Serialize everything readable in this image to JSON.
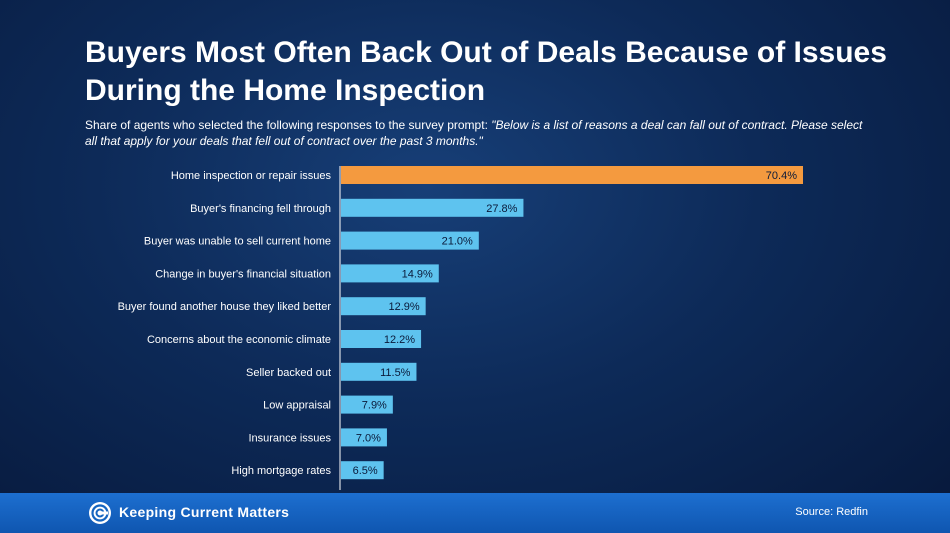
{
  "title": "Buyers Most Often Back Out of Deals Because of Issues During the Home Inspection",
  "subtitle_plain": "Share of agents who selected the following responses to the survey prompt: ",
  "subtitle_quote": "\"Below is a list of reasons a deal can fall out of contract. Please select all that apply for your deals that fell out of contract over the past 3 months.\"",
  "footer": {
    "brand": "Keeping Current Matters",
    "source": "Source: Redfin",
    "logo_icon": "kcm-logo-icon"
  },
  "colors": {
    "highlight_bar": "#f49a3f",
    "standard_bar": "#5ec3ef",
    "background": "#0d2a58",
    "footer": "#1565c0"
  },
  "chart_data": {
    "type": "bar",
    "orientation": "horizontal",
    "categories": [
      "Home inspection or repair issues",
      "Buyer's financing fell through",
      "Buyer was unable to sell current home",
      "Change in buyer's financial situation",
      "Buyer found another house they liked better",
      "Concerns about the economic climate",
      "Seller backed out",
      "Low appraisal",
      "Insurance issues",
      "High mortgage rates"
    ],
    "values": [
      70.4,
      27.8,
      21.0,
      14.9,
      12.9,
      12.2,
      11.5,
      7.9,
      7.0,
      6.5
    ],
    "value_labels": [
      "70.4%",
      "27.8%",
      "21.0%",
      "14.9%",
      "12.9%",
      "12.2%",
      "11.5%",
      "7.9%",
      "7.0%",
      "6.5%"
    ],
    "highlight_index": 0,
    "xlim": [
      0,
      70.4
    ],
    "grid": false,
    "legend": "none"
  }
}
